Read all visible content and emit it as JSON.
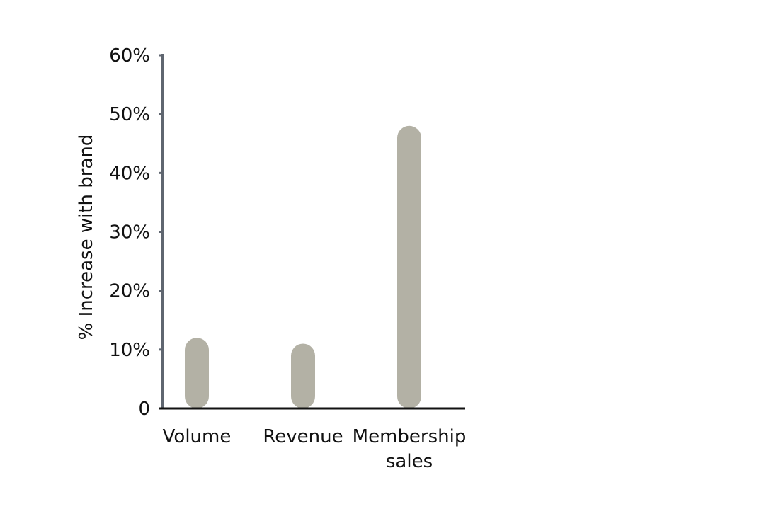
{
  "chart_data": {
    "type": "bar",
    "categories": [
      [
        "Volume"
      ],
      [
        "Revenue"
      ],
      [
        "Membership",
        "sales"
      ]
    ],
    "values": [
      12,
      11,
      48
    ],
    "xlabel": "",
    "ylabel": "% Increase with brand",
    "ylim": [
      0,
      60
    ],
    "yticks": [
      {
        "value": 0,
        "label": "0"
      },
      {
        "value": 10,
        "label": "10%"
      },
      {
        "value": 20,
        "label": "20%"
      },
      {
        "value": 30,
        "label": "30%"
      },
      {
        "value": 40,
        "label": "40%"
      },
      {
        "value": 50,
        "label": "50%"
      },
      {
        "value": 60,
        "label": "60%"
      }
    ],
    "grid": false,
    "legend": "none",
    "colors": {
      "bar": "#b3b1a5",
      "y_axis": "#5f6670",
      "x_axis": "#111111"
    }
  }
}
